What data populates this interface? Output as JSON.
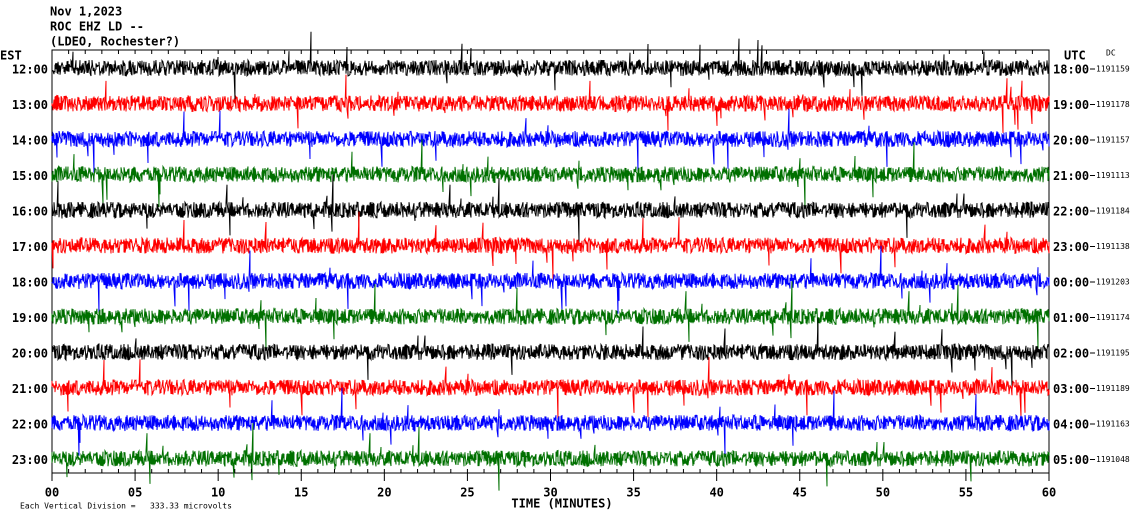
{
  "seismogram": {
    "header": [
      "Nov 1,2023",
      "ROC EHZ LD --",
      "(LDEO, Rochester?)"
    ],
    "left_axis_label": "EST",
    "right_axis_label": "UTC",
    "dc_label": "DC",
    "trace_colors": [
      "#000000",
      "#ff0000",
      "#0000ff",
      "#007000"
    ],
    "rows": [
      {
        "est": "12:00",
        "utc": "18:00",
        "dc": "1191159"
      },
      {
        "est": "13:00",
        "utc": "19:00",
        "dc": "1191178"
      },
      {
        "est": "14:00",
        "utc": "20:00",
        "dc": "1191157"
      },
      {
        "est": "15:00",
        "utc": "21:00",
        "dc": "1191113"
      },
      {
        "est": "16:00",
        "utc": "22:00",
        "dc": "1191184"
      },
      {
        "est": "17:00",
        "utc": "23:00",
        "dc": "1191138"
      },
      {
        "est": "18:00",
        "utc": "00:00",
        "dc": "1191203"
      },
      {
        "est": "19:00",
        "utc": "01:00",
        "dc": "1191174"
      },
      {
        "est": "20:00",
        "utc": "02:00",
        "dc": "1191195"
      },
      {
        "est": "21:00",
        "utc": "03:00",
        "dc": "1191189"
      },
      {
        "est": "22:00",
        "utc": "04:00",
        "dc": "1191163"
      },
      {
        "est": "23:00",
        "utc": "05:00",
        "dc": "1191048"
      }
    ],
    "xlim": [
      0,
      60
    ],
    "xticks": [
      {
        "value": 0,
        "label": "00"
      },
      {
        "value": 5,
        "label": "05"
      },
      10,
      15,
      20,
      25,
      30,
      35,
      40,
      45,
      50,
      55,
      60
    ],
    "xlabel": "TIME (MINUTES)",
    "footer": [
      "Each Vertical Division =",
      "333.33 microvolts"
    ]
  }
}
